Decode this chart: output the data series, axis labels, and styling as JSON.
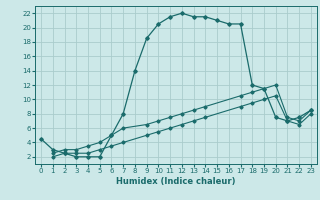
{
  "xlabel": "Humidex (Indice chaleur)",
  "bg_color": "#cce8e8",
  "grid_color": "#aacccc",
  "line_color": "#1a6b6b",
  "xlim": [
    -0.5,
    23.5
  ],
  "ylim": [
    1,
    23
  ],
  "xticks": [
    0,
    1,
    2,
    3,
    4,
    5,
    6,
    7,
    8,
    9,
    10,
    11,
    12,
    13,
    14,
    15,
    16,
    17,
    18,
    19,
    20,
    21,
    22,
    23
  ],
  "yticks": [
    2,
    4,
    6,
    8,
    10,
    12,
    14,
    16,
    18,
    20,
    22
  ],
  "curve1_x": [
    0,
    1,
    2,
    3,
    4,
    5,
    6,
    7,
    8,
    9,
    10,
    11,
    12,
    13,
    14,
    15,
    16,
    17,
    18,
    19,
    20,
    21,
    22,
    23
  ],
  "curve1_y": [
    4.5,
    3.0,
    2.5,
    2.0,
    2.0,
    2.0,
    5.0,
    8.0,
    14.0,
    18.5,
    20.5,
    21.5,
    22.0,
    21.5,
    21.5,
    21.0,
    20.5,
    20.5,
    12.0,
    11.5,
    7.5,
    7.0,
    7.5,
    8.5
  ],
  "curve2_x": [
    1,
    2,
    3,
    4,
    5,
    6,
    7,
    9,
    10,
    11,
    12,
    13,
    14,
    17,
    18,
    19,
    20,
    21,
    22,
    23
  ],
  "curve2_y": [
    2.5,
    3.0,
    3.0,
    3.5,
    4.0,
    5.0,
    6.0,
    6.5,
    7.0,
    7.5,
    8.0,
    8.5,
    9.0,
    10.5,
    11.0,
    11.5,
    12.0,
    7.5,
    7.0,
    8.5
  ],
  "curve3_x": [
    1,
    2,
    3,
    4,
    5,
    6,
    7,
    9,
    10,
    11,
    12,
    13,
    14,
    17,
    18,
    19,
    20,
    21,
    22,
    23
  ],
  "curve3_y": [
    2.0,
    2.5,
    2.5,
    2.5,
    3.0,
    3.5,
    4.0,
    5.0,
    5.5,
    6.0,
    6.5,
    7.0,
    7.5,
    9.0,
    9.5,
    10.0,
    10.5,
    7.0,
    6.5,
    8.0
  ]
}
